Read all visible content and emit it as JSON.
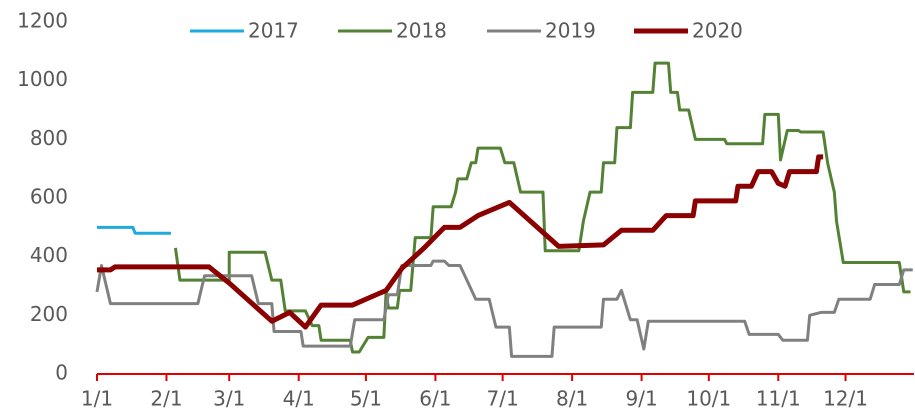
{
  "chart_data": {
    "type": "line",
    "xlim": [
      0,
      365
    ],
    "xticks": [
      {
        "value": 0,
        "label": "1/1"
      },
      {
        "value": 31,
        "label": "2/1"
      },
      {
        "value": 59,
        "label": "3/1"
      },
      {
        "value": 90,
        "label": "4/1"
      },
      {
        "value": 120,
        "label": "5/1"
      },
      {
        "value": 151,
        "label": "6/1"
      },
      {
        "value": 181,
        "label": "7/1"
      },
      {
        "value": 212,
        "label": "8/1"
      },
      {
        "value": 243,
        "label": "9/1"
      },
      {
        "value": 273,
        "label": "10/1"
      },
      {
        "value": 304,
        "label": "11/1"
      },
      {
        "value": 334,
        "label": "12/1"
      }
    ],
    "ylim": [
      0,
      1200
    ],
    "yticks": [
      0,
      200,
      400,
      600,
      800,
      1000,
      1200
    ],
    "grid": false,
    "legend": "top",
    "series": [
      {
        "name": "2017",
        "color": "#1fa9e1",
        "width": 3,
        "x": [
          0,
          16,
          17,
          33
        ],
        "values": [
          500,
          500,
          480,
          480
        ]
      },
      {
        "name": "2018",
        "color": "#548235",
        "width": 3,
        "x": [
          35,
          37,
          59,
          59,
          75,
          78,
          82,
          84,
          93,
          96,
          99,
          100,
          113,
          114,
          117,
          121,
          128,
          129,
          130,
          134,
          135,
          140,
          142,
          149,
          150,
          158,
          160,
          161,
          165,
          167,
          169,
          170,
          180,
          182,
          186,
          189,
          199,
          200,
          215,
          217,
          220,
          225,
          226,
          231,
          232,
          238,
          239,
          248,
          249,
          255,
          256,
          259,
          260,
          264,
          267,
          280,
          281,
          297,
          298,
          304,
          305,
          308,
          313,
          314,
          324,
          326,
          329,
          330,
          333,
          358,
          360,
          363
        ],
        "values": [
          430,
          320,
          320,
          415,
          415,
          320,
          320,
          215,
          215,
          165,
          165,
          115,
          115,
          75,
          75,
          125,
          125,
          280,
          225,
          225,
          285,
          285,
          465,
          465,
          570,
          570,
          620,
          665,
          665,
          720,
          720,
          770,
          770,
          720,
          720,
          620,
          620,
          420,
          420,
          520,
          620,
          620,
          720,
          720,
          840,
          840,
          960,
          960,
          1060,
          1060,
          960,
          960,
          900,
          900,
          800,
          800,
          785,
          785,
          885,
          885,
          730,
          830,
          830,
          825,
          825,
          720,
          620,
          520,
          380,
          380,
          280,
          280
        ]
      },
      {
        "name": "2019",
        "color": "#808080",
        "width": 3,
        "x": [
          0,
          2,
          6,
          45,
          48,
          69,
          72,
          78,
          79,
          91,
          92,
          113,
          115,
          128,
          130,
          134,
          136,
          149,
          150,
          155,
          157,
          162,
          169,
          175,
          178,
          184,
          185,
          203,
          204,
          225,
          226,
          232,
          234,
          238,
          241,
          244,
          246,
          289,
          291,
          304,
          306,
          317,
          318,
          323,
          329,
          331,
          345,
          347,
          358,
          360,
          364
        ],
        "values": [
          280,
          370,
          240,
          240,
          335,
          335,
          240,
          240,
          145,
          145,
          95,
          95,
          185,
          185,
          270,
          270,
          370,
          370,
          385,
          385,
          370,
          370,
          255,
          255,
          160,
          160,
          60,
          60,
          160,
          160,
          255,
          255,
          285,
          185,
          185,
          85,
          180,
          180,
          135,
          135,
          115,
          115,
          200,
          210,
          210,
          255,
          255,
          305,
          305,
          355,
          355
        ]
      },
      {
        "name": "2020",
        "color": "#8b0000",
        "width": 5,
        "x": [
          0,
          6,
          8,
          50,
          59,
          78,
          86,
          93,
          100,
          114,
          129,
          136,
          146,
          155,
          162,
          170,
          184,
          206,
          226,
          234,
          248,
          254,
          266,
          267,
          285,
          286,
          292,
          295,
          301,
          304,
          307,
          309,
          321,
          322,
          324
        ],
        "values": [
          355,
          355,
          365,
          365,
          310,
          180,
          210,
          160,
          235,
          235,
          285,
          360,
          430,
          500,
          500,
          540,
          585,
          435,
          440,
          490,
          490,
          540,
          540,
          590,
          590,
          640,
          640,
          690,
          690,
          650,
          640,
          690,
          690,
          740,
          740
        ]
      }
    ]
  }
}
